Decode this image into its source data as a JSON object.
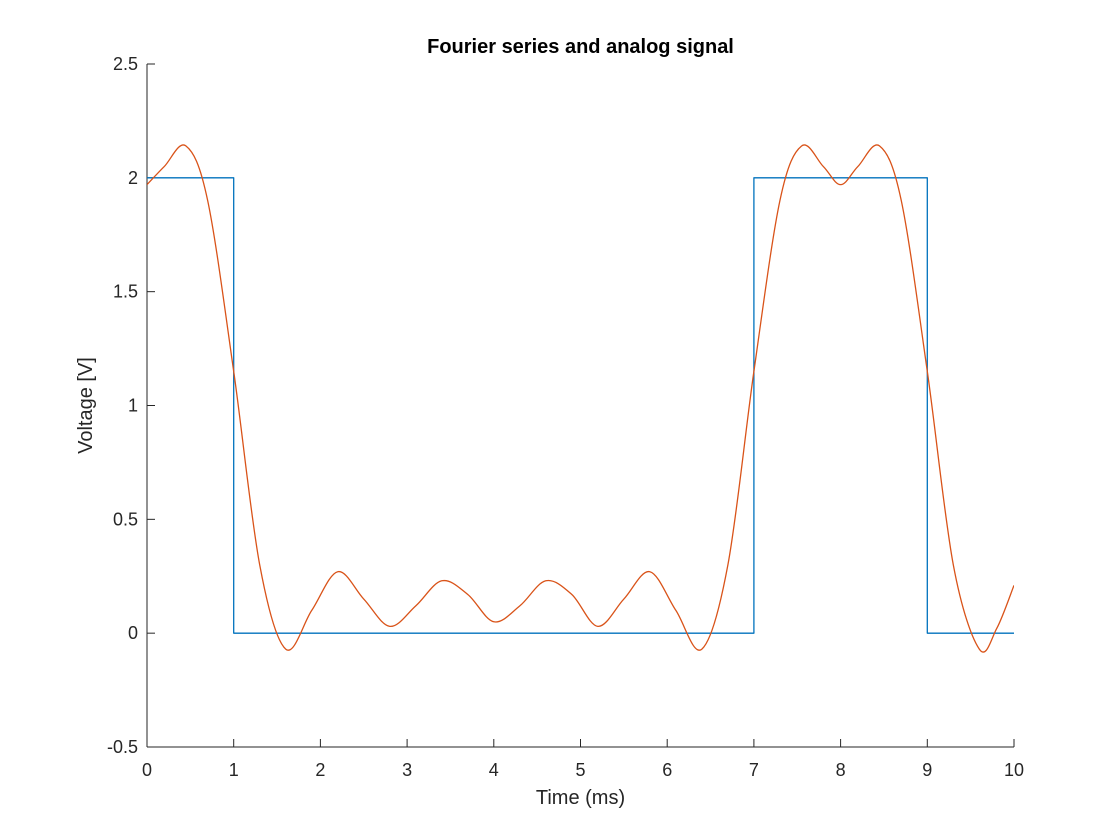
{
  "chart_data": {
    "type": "line",
    "title": "Fourier series and analog signal",
    "xlabel": "Time (ms)",
    "ylabel": "Voltage [V]",
    "xlim": [
      0,
      10
    ],
    "ylim": [
      -0.5,
      2.5
    ],
    "x_ticks": [
      0,
      1,
      2,
      3,
      4,
      5,
      6,
      7,
      8,
      9,
      10
    ],
    "x_tick_labels": [
      "0",
      "1",
      "2",
      "3",
      "4",
      "5",
      "6",
      "7",
      "8",
      "9",
      "10"
    ],
    "y_ticks": [
      -0.5,
      0,
      0.5,
      1,
      1.5,
      2,
      2.5
    ],
    "y_tick_labels": [
      "-0.5",
      "0",
      "0.5",
      "1",
      "1.5",
      "2",
      "2.5"
    ],
    "grid": false,
    "legend": "none",
    "series": [
      {
        "color": "#0072BD",
        "style": "step",
        "x": [
          0,
          1,
          1,
          7,
          7,
          9,
          9,
          10
        ],
        "y": [
          2,
          2,
          0,
          0,
          2,
          2,
          0,
          0
        ]
      },
      {
        "color": "#D95319",
        "style": "smooth",
        "x": [
          0,
          0.2,
          0.45,
          0.7,
          1.0,
          1.3,
          1.6,
          1.9,
          2.2,
          2.5,
          2.8,
          3.1,
          3.4,
          3.7,
          4.0,
          4.3,
          4.6,
          4.9,
          5.2,
          5.5,
          5.8,
          6.1,
          6.4,
          6.7,
          7.0,
          7.3,
          7.55,
          7.8,
          8.0,
          8.2,
          8.45,
          8.7,
          9.0,
          9.3,
          9.6,
          9.8,
          10.0
        ],
        "y": [
          1.97,
          2.05,
          2.14,
          1.9,
          1.15,
          0.3,
          -0.07,
          0.1,
          0.27,
          0.15,
          0.03,
          0.12,
          0.23,
          0.17,
          0.05,
          0.12,
          0.23,
          0.17,
          0.03,
          0.15,
          0.27,
          0.1,
          -0.07,
          0.3,
          1.15,
          1.9,
          2.14,
          2.05,
          1.97,
          2.05,
          2.14,
          1.9,
          1.15,
          0.3,
          -0.07,
          0.02,
          0.21
        ]
      }
    ]
  }
}
